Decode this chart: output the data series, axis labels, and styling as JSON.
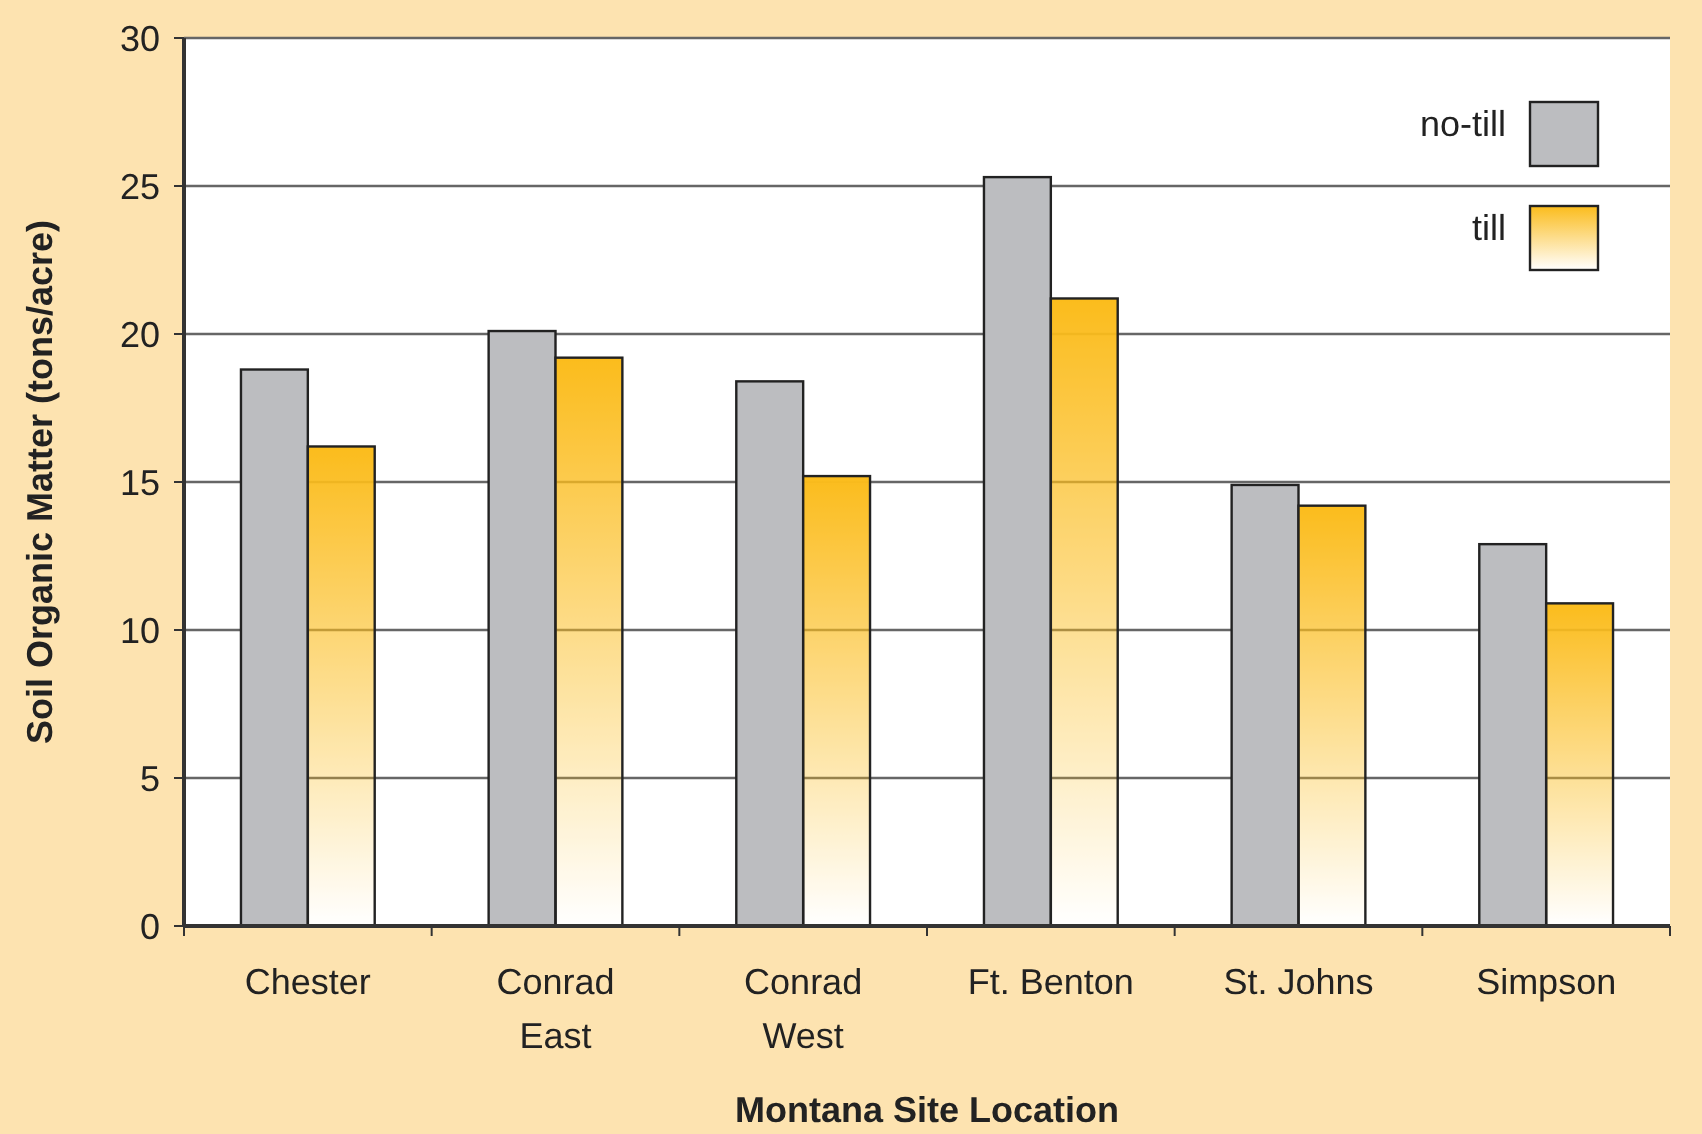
{
  "chart_data": {
    "type": "bar",
    "xlabel": "Montana Site Location",
    "ylabel": "Soil Organic Matter (tons/acre)",
    "categories": [
      "Chester",
      "Conrad East",
      "Conrad West",
      "Ft. Benton",
      "St. Johns",
      "Simpson"
    ],
    "series": [
      {
        "name": "no-till",
        "color": "#bcbdc0",
        "values": [
          18.8,
          20.1,
          18.4,
          25.3,
          14.9,
          12.9
        ]
      },
      {
        "name": "till",
        "color": "#fbbc1c",
        "values": [
          16.2,
          19.2,
          15.2,
          21.2,
          14.2,
          10.9
        ]
      }
    ],
    "ylim": [
      0,
      30
    ],
    "yticks": [
      0,
      5,
      10,
      15,
      20,
      25,
      30
    ],
    "grid": "y",
    "legend": "top right"
  }
}
